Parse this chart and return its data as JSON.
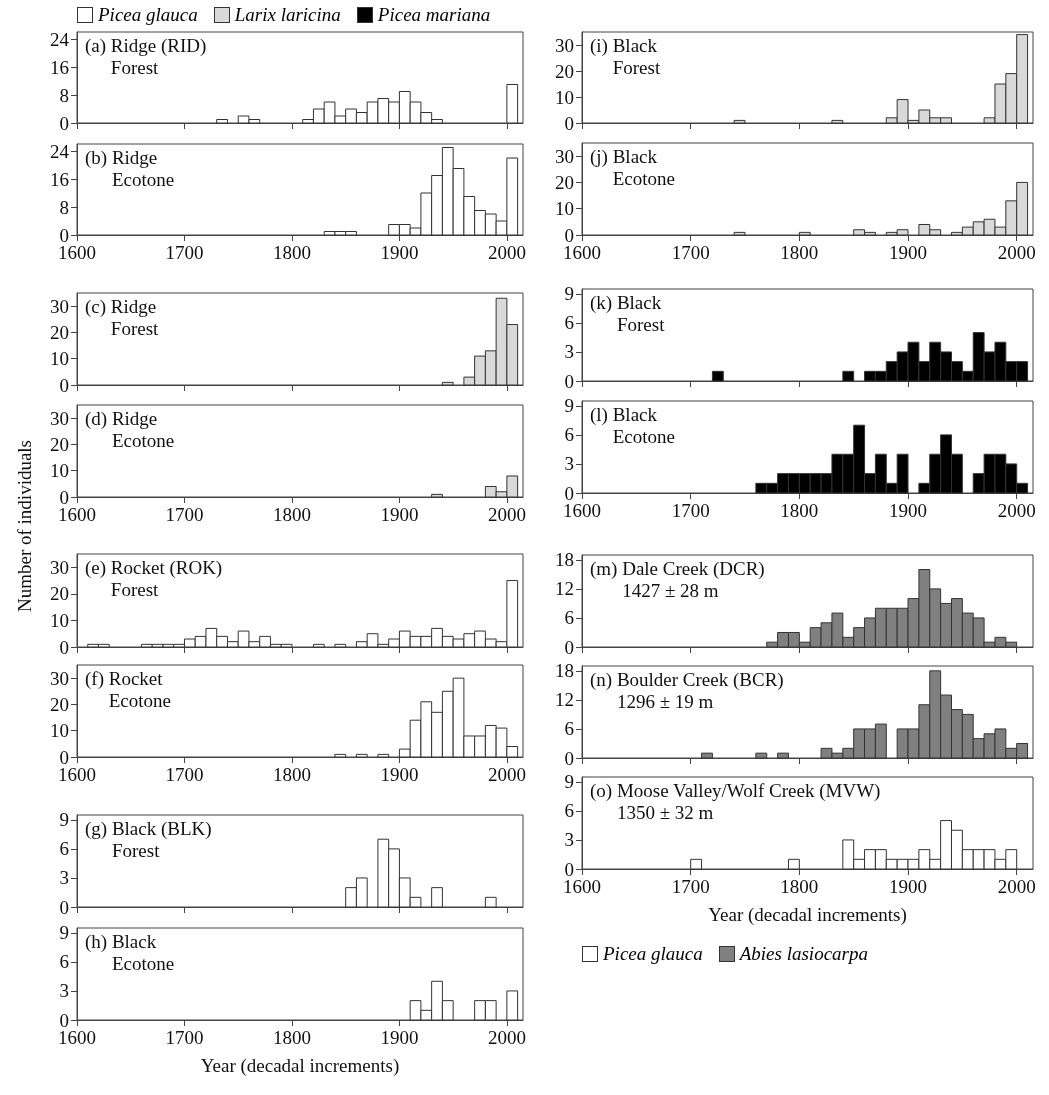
{
  "chart_data": [
    {
      "type": "histogram",
      "title": "(a) Ridge (RID)",
      "subtitle": "Forest",
      "legend": "top",
      "tick_labels": "y",
      "xlim": [
        1600,
        2015
      ],
      "xticks": [
        1600,
        1700,
        1800,
        1900,
        2000
      ],
      "ylim": [
        0,
        26
      ],
      "yticks": [
        0,
        8,
        16,
        24
      ],
      "bins": [
        1730,
        1740,
        1750,
        1760,
        1770,
        1780,
        1790,
        1800,
        1810,
        1820,
        1830,
        1840,
        1850,
        1860,
        1870,
        1880,
        1890,
        1900,
        1910,
        1920,
        1930,
        1940,
        1950,
        1960,
        1970,
        1980,
        1990,
        2000,
        2010
      ],
      "series": [
        {
          "name": "Picea glauca",
          "color": "#ffffff",
          "values": [
            1,
            0,
            2,
            1,
            0,
            0,
            0,
            0,
            1,
            4,
            6,
            2,
            4,
            3,
            6,
            7,
            6,
            9,
            6,
            3,
            1,
            0,
            0,
            0,
            0,
            0,
            0,
            11
          ]
        }
      ]
    },
    {
      "type": "histogram",
      "title": "(b) Ridge",
      "subtitle": "Ecotone",
      "xlim": [
        1600,
        2015
      ],
      "xticks": [
        1600,
        1700,
        1800,
        1900,
        2000
      ],
      "ylim": [
        0,
        26
      ],
      "yticks": [
        0,
        8,
        16,
        24
      ],
      "bins": [
        1830,
        1840,
        1850,
        1860,
        1870,
        1880,
        1890,
        1900,
        1910,
        1920,
        1930,
        1940,
        1950,
        1960,
        1970,
        1980,
        1990,
        2000,
        2010
      ],
      "series": [
        {
          "color": "#ffffff",
          "values": [
            1,
            1,
            1,
            0,
            0,
            0,
            3,
            3,
            2,
            12,
            17,
            25,
            19,
            11,
            7,
            6,
            4,
            22
          ]
        }
      ]
    },
    {
      "type": "histogram",
      "title": "(c) Ridge",
      "subtitle": "Forest",
      "tick_labels": "y",
      "xlim": [
        1600,
        2015
      ],
      "xticks": [
        1600,
        1700,
        1800,
        1900,
        2000
      ],
      "ylim": [
        0,
        35
      ],
      "yticks": [
        0,
        10,
        20,
        30
      ],
      "bins": [
        1940,
        1950,
        1960,
        1970,
        1980,
        1990,
        2000,
        2010
      ],
      "series": [
        {
          "name": "Larix laricina",
          "color": "#d9d9d9",
          "values": [
            1,
            0,
            3,
            11,
            13,
            33,
            23
          ]
        }
      ]
    },
    {
      "type": "histogram",
      "title": "(d) Ridge",
      "subtitle": "Ecotone",
      "ylabel": "Number of individuals",
      "xlim": [
        1600,
        2015
      ],
      "xticks": [
        1600,
        1700,
        1800,
        1900,
        2000
      ],
      "ylim": [
        0,
        35
      ],
      "yticks": [
        0,
        10,
        20,
        30
      ],
      "bins": [
        1930,
        1940,
        1950,
        1960,
        1970,
        1980,
        1990,
        2000,
        2010
      ],
      "series": [
        {
          "color": "#d9d9d9",
          "values": [
            1,
            0,
            0,
            0,
            0,
            4,
            2,
            8
          ]
        }
      ]
    },
    {
      "type": "histogram",
      "title": "(e) Rocket (ROK)",
      "subtitle": "Forest",
      "tick_labels": "y",
      "xlim": [
        1600,
        2015
      ],
      "xticks": [
        1600,
        1700,
        1800,
        1900,
        2000
      ],
      "ylim": [
        0,
        35
      ],
      "yticks": [
        0,
        10,
        20,
        30
      ],
      "bins": [
        1610,
        1620,
        1630,
        1640,
        1650,
        1660,
        1670,
        1680,
        1690,
        1700,
        1710,
        1720,
        1730,
        1740,
        1750,
        1760,
        1770,
        1780,
        1790,
        1800,
        1810,
        1820,
        1830,
        1840,
        1850,
        1860,
        1870,
        1880,
        1890,
        1900,
        1910,
        1920,
        1930,
        1940,
        1950,
        1960,
        1970,
        1980,
        1990,
        2000,
        2010
      ],
      "series": [
        {
          "color": "#ffffff",
          "values": [
            1,
            1,
            0,
            0,
            0,
            1,
            1,
            1,
            1,
            3,
            4,
            7,
            4,
            2,
            6,
            2,
            4,
            1,
            1,
            0,
            0,
            1,
            0,
            1,
            0,
            2,
            5,
            1,
            3,
            6,
            4,
            4,
            7,
            4,
            3,
            5,
            6,
            3,
            2,
            25
          ]
        }
      ]
    },
    {
      "type": "histogram",
      "title": "(f) Rocket",
      "subtitle": "Ecotone",
      "xlim": [
        1600,
        2015
      ],
      "xticks": [
        1600,
        1700,
        1800,
        1900,
        2000
      ],
      "ylim": [
        0,
        35
      ],
      "yticks": [
        0,
        10,
        20,
        30
      ],
      "bins": [
        1840,
        1850,
        1860,
        1870,
        1880,
        1890,
        1900,
        1910,
        1920,
        1930,
        1940,
        1950,
        1960,
        1970,
        1980,
        1990,
        2000,
        2010
      ],
      "series": [
        {
          "color": "#ffffff",
          "values": [
            1,
            0,
            1,
            0,
            1,
            0,
            3,
            14,
            21,
            17,
            25,
            30,
            8,
            8,
            12,
            11,
            4
          ]
        }
      ]
    },
    {
      "type": "histogram",
      "title": "(g) Black (BLK)",
      "subtitle": "Forest",
      "tick_labels": "y",
      "xlim": [
        1600,
        2015
      ],
      "xticks": [
        1600,
        1700,
        1800,
        1900,
        2000
      ],
      "ylim": [
        0,
        9.5
      ],
      "yticks": [
        0,
        3,
        6,
        9
      ],
      "bins": [
        1850,
        1860,
        1870,
        1880,
        1890,
        1900,
        1910,
        1920,
        1930,
        1940,
        1950,
        1960,
        1970,
        1980,
        1990
      ],
      "series": [
        {
          "color": "#ffffff",
          "values": [
            2,
            3,
            0,
            7,
            6,
            3,
            1,
            0,
            2,
            0,
            0,
            0,
            0,
            1
          ]
        }
      ]
    },
    {
      "type": "histogram",
      "title": "(h) Black",
      "subtitle": "Ecotone",
      "xlabel": "Year (decadal increments)",
      "xlim": [
        1600,
        2015
      ],
      "xticks": [
        1600,
        1700,
        1800,
        1900,
        2000
      ],
      "ylim": [
        0,
        9.5
      ],
      "yticks": [
        0,
        3,
        6,
        9
      ],
      "bins": [
        1910,
        1920,
        1930,
        1940,
        1950,
        1960,
        1970,
        1980,
        1990,
        2000,
        2010
      ],
      "series": [
        {
          "color": "#ffffff",
          "values": [
            2,
            1,
            4,
            2,
            0,
            0,
            2,
            2,
            0,
            3
          ]
        }
      ]
    },
    {
      "type": "histogram",
      "title": "(i) Black",
      "subtitle": "Forest",
      "tick_labels": "y",
      "xlim": [
        1600,
        2015
      ],
      "xticks": [
        1600,
        1700,
        1800,
        1900,
        2000
      ],
      "ylim": [
        0,
        35
      ],
      "yticks": [
        0,
        10,
        20,
        30
      ],
      "bins": [
        1740,
        1750,
        1760,
        1770,
        1780,
        1790,
        1800,
        1810,
        1820,
        1830,
        1840,
        1850,
        1860,
        1870,
        1880,
        1890,
        1900,
        1910,
        1920,
        1930,
        1940,
        1950,
        1960,
        1970,
        1980,
        1990,
        2000,
        2010
      ],
      "series": [
        {
          "color": "#d9d9d9",
          "values": [
            1,
            0,
            0,
            0,
            0,
            0,
            0,
            0,
            0,
            1,
            0,
            0,
            0,
            0,
            2,
            9,
            1,
            5,
            2,
            2,
            0,
            0,
            0,
            2,
            15,
            19,
            34
          ]
        }
      ]
    },
    {
      "type": "histogram",
      "title": "(j) Black",
      "subtitle": "Ecotone",
      "xlim": [
        1600,
        2015
      ],
      "xticks": [
        1600,
        1700,
        1800,
        1900,
        2000
      ],
      "ylim": [
        0,
        35
      ],
      "yticks": [
        0,
        10,
        20,
        30
      ],
      "bins": [
        1740,
        1750,
        1760,
        1770,
        1780,
        1790,
        1800,
        1810,
        1820,
        1830,
        1840,
        1850,
        1860,
        1870,
        1880,
        1890,
        1900,
        1910,
        1920,
        1930,
        1940,
        1950,
        1960,
        1970,
        1980,
        1990,
        2000,
        2010
      ],
      "series": [
        {
          "color": "#d9d9d9",
          "values": [
            1,
            0,
            0,
            0,
            0,
            0,
            1,
            0,
            0,
            0,
            0,
            2,
            1,
            0,
            1,
            2,
            0,
            4,
            2,
            0,
            1,
            3,
            5,
            6,
            3,
            13,
            20
          ]
        }
      ]
    },
    {
      "type": "histogram",
      "title": "(k) Black",
      "subtitle": "Forest",
      "tick_labels": "y",
      "xlim": [
        1600,
        2015
      ],
      "xticks": [
        1600,
        1700,
        1800,
        1900,
        2000
      ],
      "ylim": [
        0,
        9.5
      ],
      "yticks": [
        0,
        3,
        6,
        9
      ],
      "bins": [
        1720,
        1730,
        1740,
        1750,
        1760,
        1770,
        1780,
        1790,
        1800,
        1810,
        1820,
        1830,
        1840,
        1850,
        1860,
        1870,
        1880,
        1890,
        1900,
        1910,
        1920,
        1930,
        1940,
        1950,
        1960,
        1970,
        1980,
        1990,
        2000,
        2010
      ],
      "series": [
        {
          "name": "Picea mariana",
          "color": "#000000",
          "values": [
            1,
            0,
            0,
            0,
            0,
            0,
            0,
            0,
            0,
            0,
            0,
            0,
            1,
            0,
            1,
            1,
            2,
            3,
            4,
            2,
            4,
            3,
            2,
            1,
            5,
            3,
            4,
            2,
            2
          ]
        }
      ]
    },
    {
      "type": "histogram",
      "title": "(l) Black",
      "subtitle": "Ecotone",
      "xlim": [
        1600,
        2015
      ],
      "xticks": [
        1600,
        1700,
        1800,
        1900,
        2000
      ],
      "ylim": [
        0,
        9.5
      ],
      "yticks": [
        0,
        3,
        6,
        9
      ],
      "bins": [
        1760,
        1770,
        1780,
        1790,
        1800,
        1810,
        1820,
        1830,
        1840,
        1850,
        1860,
        1870,
        1880,
        1890,
        1900,
        1910,
        1920,
        1930,
        1940,
        1950,
        1960,
        1970,
        1980,
        1990,
        2000,
        2010
      ],
      "series": [
        {
          "color": "#000000",
          "values": [
            1,
            1,
            2,
            2,
            2,
            2,
            2,
            4,
            4,
            7,
            2,
            4,
            1,
            4,
            0,
            1,
            4,
            6,
            4,
            0,
            2,
            4,
            4,
            3,
            1
          ]
        }
      ]
    },
    {
      "type": "histogram",
      "title": "(m) Dale Creek (DCR)",
      "subtitle": "1427 ± 28 m",
      "tick_labels": "y",
      "xlim": [
        1600,
        2015
      ],
      "xticks": [
        1600,
        1700,
        1800,
        1900,
        2000
      ],
      "ylim": [
        0,
        19
      ],
      "yticks": [
        0,
        6,
        12,
        18
      ],
      "bins": [
        1770,
        1780,
        1790,
        1800,
        1810,
        1820,
        1830,
        1840,
        1850,
        1860,
        1870,
        1880,
        1890,
        1900,
        1910,
        1920,
        1930,
        1940,
        1950,
        1960,
        1970,
        1980,
        1990,
        2000
      ],
      "series": [
        {
          "name": "Abies lasiocarpa",
          "color": "#808080",
          "values": [
            1,
            3,
            3,
            1,
            4,
            5,
            7,
            2,
            4,
            6,
            8,
            8,
            8,
            10,
            16,
            12,
            9,
            10,
            7,
            6,
            1,
            2,
            1
          ]
        }
      ]
    },
    {
      "type": "histogram",
      "title": "(n) Boulder Creek (BCR)",
      "subtitle": "1296 ± 19 m",
      "tick_labels": "y",
      "xlim": [
        1600,
        2015
      ],
      "xticks": [
        1600,
        1700,
        1800,
        1900,
        2000
      ],
      "ylim": [
        0,
        19
      ],
      "yticks": [
        0,
        6,
        12,
        18
      ],
      "bins": [
        1710,
        1720,
        1730,
        1740,
        1750,
        1760,
        1770,
        1780,
        1790,
        1800,
        1810,
        1820,
        1830,
        1840,
        1850,
        1860,
        1870,
        1880,
        1890,
        1900,
        1910,
        1920,
        1930,
        1940,
        1950,
        1960,
        1970,
        1980,
        1990,
        2000,
        2010
      ],
      "series": [
        {
          "color": "#808080",
          "values": [
            1,
            0,
            0,
            0,
            0,
            1,
            0,
            1,
            0,
            0,
            0,
            2,
            1,
            2,
            6,
            6,
            7,
            0,
            6,
            6,
            11,
            18,
            13,
            10,
            9,
            4,
            5,
            6,
            2,
            3
          ]
        }
      ]
    },
    {
      "type": "histogram",
      "title": "(o) Moose Valley/Wolf Creek (MVW)",
      "subtitle": "1350 ± 32 m",
      "legend": "bottom",
      "xlabel": "Year (decadal increments)",
      "xlim": [
        1600,
        2015
      ],
      "xticks": [
        1600,
        1700,
        1800,
        1900,
        2000
      ],
      "ylim": [
        0,
        9.5
      ],
      "yticks": [
        0,
        3,
        6,
        9
      ],
      "bins": [
        1700,
        1710,
        1720,
        1730,
        1740,
        1750,
        1760,
        1770,
        1780,
        1790,
        1800,
        1810,
        1820,
        1830,
        1840,
        1850,
        1860,
        1870,
        1880,
        1890,
        1900,
        1910,
        1920,
        1930,
        1940,
        1950,
        1960,
        1970,
        1980,
        1990,
        2000
      ],
      "series": [
        {
          "name": "Picea glauca",
          "color": "#ffffff",
          "values": [
            1,
            0,
            0,
            0,
            0,
            0,
            0,
            0,
            0,
            1,
            0,
            0,
            0,
            0,
            3,
            1,
            2,
            2,
            1,
            1,
            1,
            2,
            1,
            5,
            4,
            2,
            2,
            2,
            1,
            2
          ]
        }
      ]
    }
  ]
}
